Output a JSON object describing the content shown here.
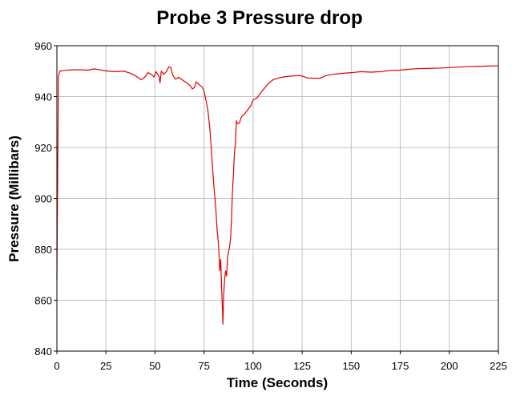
{
  "chart_data": {
    "type": "line",
    "title": "Probe 3 Pressure drop",
    "xlabel": "Time (Seconds)",
    "ylabel": "Pressure (Millibars)",
    "xlim": [
      0,
      225
    ],
    "ylim": [
      840,
      960
    ],
    "xticks": [
      0,
      25,
      50,
      75,
      100,
      125,
      150,
      175,
      200,
      225
    ],
    "yticks": [
      840,
      860,
      880,
      900,
      920,
      940,
      960
    ],
    "grid": true,
    "colors": {
      "line": "#e00000",
      "grid": "#c0c0c0",
      "axis": "#000000"
    },
    "series": [
      {
        "points": [
          [
            0,
            868
          ],
          [
            0.4,
            910
          ],
          [
            0.8,
            948
          ],
          [
            1.5,
            950
          ],
          [
            4,
            950.3
          ],
          [
            8,
            950.5
          ],
          [
            12,
            950.5
          ],
          [
            16,
            950.4
          ],
          [
            19,
            950.9
          ],
          [
            22,
            950.5
          ],
          [
            26,
            950
          ],
          [
            30,
            949.8
          ],
          [
            34,
            950
          ],
          [
            37,
            949.3
          ],
          [
            40,
            948.2
          ],
          [
            43,
            946.6
          ],
          [
            45,
            947.8
          ],
          [
            46.5,
            949.4
          ],
          [
            48,
            948.8
          ],
          [
            49.5,
            947.7
          ],
          [
            50.5,
            949.8
          ],
          [
            52,
            948
          ],
          [
            52.6,
            945.4
          ],
          [
            53.2,
            950
          ],
          [
            54.5,
            948.8
          ],
          [
            56,
            950
          ],
          [
            57,
            951.7
          ],
          [
            58,
            951.5
          ],
          [
            59,
            948.5
          ],
          [
            60.5,
            946.8
          ],
          [
            62,
            947.6
          ],
          [
            64,
            946.5
          ],
          [
            66,
            945.5
          ],
          [
            68,
            944.3
          ],
          [
            69,
            943
          ],
          [
            70,
            943.5
          ],
          [
            71,
            945.8
          ],
          [
            72,
            945
          ],
          [
            74,
            943.8
          ],
          [
            75,
            942
          ],
          [
            76,
            938.5
          ],
          [
            77,
            934.5
          ],
          [
            78,
            927
          ],
          [
            79,
            916
          ],
          [
            80,
            905
          ],
          [
            81,
            896
          ],
          [
            81.7,
            887
          ],
          [
            82,
            885.2
          ],
          [
            82.5,
            880
          ],
          [
            83,
            871.6
          ],
          [
            83.5,
            876
          ],
          [
            84,
            864
          ],
          [
            84.3,
            858
          ],
          [
            84.6,
            850.5
          ],
          [
            85,
            862
          ],
          [
            85.5,
            868.5
          ],
          [
            86,
            871.5
          ],
          [
            86.5,
            869.5
          ],
          [
            87,
            877
          ],
          [
            88,
            881
          ],
          [
            88.5,
            884
          ],
          [
            89,
            892
          ],
          [
            89.5,
            903
          ],
          [
            90,
            910
          ],
          [
            90.5,
            918
          ],
          [
            91,
            922
          ],
          [
            91.5,
            930.5
          ],
          [
            92,
            929.4
          ],
          [
            93,
            929.5
          ],
          [
            94,
            932
          ],
          [
            96,
            933.5
          ],
          [
            98,
            935.6
          ],
          [
            99,
            936.6
          ],
          [
            100,
            938.7
          ],
          [
            102,
            939.5
          ],
          [
            104,
            941.6
          ],
          [
            106,
            943.5
          ],
          [
            108,
            945.3
          ],
          [
            110,
            946.5
          ],
          [
            113,
            947.3
          ],
          [
            116,
            947.8
          ],
          [
            120,
            948.1
          ],
          [
            124,
            948.3
          ],
          [
            128,
            947.3
          ],
          [
            131,
            947.2
          ],
          [
            134,
            947.2
          ],
          [
            137,
            948.2
          ],
          [
            141,
            948.8
          ],
          [
            145,
            949.1
          ],
          [
            150,
            949.4
          ],
          [
            155,
            949.8
          ],
          [
            160,
            949.6
          ],
          [
            165,
            949.8
          ],
          [
            170,
            950.3
          ],
          [
            175,
            950.4
          ],
          [
            180,
            950.8
          ],
          [
            185,
            951
          ],
          [
            190,
            951.1
          ],
          [
            195,
            951.2
          ],
          [
            200,
            951.4
          ],
          [
            205,
            951.6
          ],
          [
            210,
            951.8
          ],
          [
            215,
            951.9
          ],
          [
            220,
            952
          ],
          [
            225,
            952.1
          ]
        ]
      }
    ]
  }
}
